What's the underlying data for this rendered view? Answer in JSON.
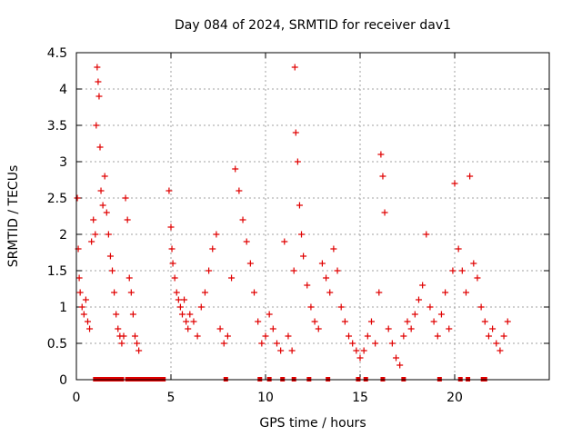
{
  "chart_data": {
    "type": "scatter",
    "title": "Day 084 of 2024, SRMTID for receiver dav1",
    "xlabel": "GPS time / hours",
    "ylabel": "SRMTID / TECUs",
    "xlim": [
      0,
      25
    ],
    "ylim": [
      0,
      4.5
    ],
    "x_ticks": [
      0,
      5,
      10,
      15,
      20
    ],
    "x_tick_labels": [
      "0",
      "5",
      "10",
      "15",
      "20"
    ],
    "y_ticks": [
      0,
      0.5,
      1,
      1.5,
      2,
      2.5,
      3,
      3.5,
      4,
      4.5
    ],
    "y_tick_labels": [
      "0",
      "0.5",
      "1",
      "1.5",
      "2",
      "2.5",
      "3",
      "3.5",
      "4",
      "4.5"
    ],
    "grid": true,
    "marker": "+",
    "color": "#e00000",
    "series": [
      {
        "name": "SRMTID",
        "x": [
          0.05,
          0.1,
          0.15,
          0.2,
          0.3,
          0.4,
          0.5,
          0.6,
          0.7,
          0.8,
          0.9,
          1.0,
          1.05,
          1.1,
          1.15,
          1.2,
          1.25,
          1.3,
          1.4,
          1.5,
          1.6,
          1.7,
          1.8,
          1.9,
          2.0,
          2.1,
          2.2,
          2.3,
          2.4,
          2.5,
          2.6,
          2.7,
          2.8,
          2.9,
          3.0,
          3.1,
          3.2,
          3.3,
          4.9,
          5.0,
          5.05,
          5.1,
          5.2,
          5.3,
          5.4,
          5.5,
          5.6,
          5.7,
          5.8,
          5.9,
          6.0,
          6.2,
          6.4,
          6.6,
          6.8,
          7.0,
          7.2,
          7.4,
          7.6,
          7.8,
          8.0,
          8.2,
          8.4,
          8.6,
          8.8,
          9.0,
          9.2,
          9.4,
          9.6,
          9.8,
          10.0,
          10.2,
          10.4,
          10.6,
          10.8,
          11.0,
          11.2,
          11.4,
          11.5,
          11.55,
          11.6,
          11.7,
          11.8,
          11.9,
          12.0,
          12.2,
          12.4,
          12.6,
          12.8,
          13.0,
          13.2,
          13.4,
          13.6,
          13.8,
          14.0,
          14.2,
          14.4,
          14.6,
          14.8,
          15.0,
          15.2,
          15.4,
          15.6,
          15.8,
          16.0,
          16.1,
          16.2,
          16.3,
          16.5,
          16.7,
          16.9,
          17.1,
          17.3,
          17.5,
          17.7,
          17.9,
          18.1,
          18.3,
          18.5,
          18.7,
          18.9,
          19.1,
          19.3,
          19.5,
          19.7,
          19.9,
          20.0,
          20.2,
          20.4,
          20.6,
          20.8,
          21.0,
          21.2,
          21.4,
          21.6,
          21.8,
          22.0,
          22.2,
          22.4,
          22.6,
          22.8
        ],
        "y": [
          2.5,
          1.8,
          1.4,
          1.2,
          1.0,
          0.9,
          1.1,
          0.8,
          0.7,
          1.9,
          2.2,
          2.0,
          3.5,
          4.3,
          4.1,
          3.9,
          3.2,
          2.6,
          2.4,
          2.8,
          2.3,
          2.0,
          1.7,
          1.5,
          1.2,
          0.9,
          0.7,
          0.6,
          0.5,
          0.6,
          2.5,
          2.2,
          1.4,
          1.2,
          0.9,
          0.6,
          0.5,
          0.4,
          2.6,
          2.1,
          1.8,
          1.6,
          1.4,
          1.2,
          1.1,
          1.0,
          0.9,
          1.1,
          0.8,
          0.7,
          0.9,
          0.8,
          0.6,
          1.0,
          1.2,
          1.5,
          1.8,
          2.0,
          0.7,
          0.5,
          0.6,
          1.4,
          2.9,
          2.6,
          2.2,
          1.9,
          1.6,
          1.2,
          0.8,
          0.5,
          0.6,
          0.9,
          0.7,
          0.5,
          0.4,
          1.9,
          0.6,
          0.4,
          1.5,
          4.3,
          3.4,
          3.0,
          2.4,
          2.0,
          1.7,
          1.3,
          1.0,
          0.8,
          0.7,
          1.6,
          1.4,
          1.2,
          1.8,
          1.5,
          1.0,
          0.8,
          0.6,
          0.5,
          0.4,
          0.3,
          0.4,
          0.6,
          0.8,
          0.5,
          1.2,
          3.1,
          2.8,
          2.3,
          0.7,
          0.5,
          0.3,
          0.2,
          0.6,
          0.8,
          0.7,
          0.9,
          1.1,
          1.3,
          2.0,
          1.0,
          0.8,
          0.6,
          0.9,
          1.2,
          0.7,
          1.5,
          2.7,
          1.8,
          1.5,
          1.2,
          2.8,
          1.6,
          1.4,
          1.0,
          0.8,
          0.6,
          0.7,
          0.5,
          0.4,
          0.6,
          0.8
        ]
      }
    ],
    "zero_markers_x": [
      1.0,
      1.2,
      1.4,
      1.6,
      1.8,
      2.0,
      2.2,
      2.4,
      2.7,
      2.9,
      3.0,
      3.2,
      3.4,
      3.6,
      3.8,
      4.0,
      4.2,
      4.4,
      4.6,
      7.9,
      9.7,
      10.2,
      10.9,
      11.5,
      12.3,
      13.3,
      14.9,
      15.3,
      16.2,
      17.3,
      19.2,
      20.3,
      20.7,
      21.5,
      21.6
    ]
  }
}
